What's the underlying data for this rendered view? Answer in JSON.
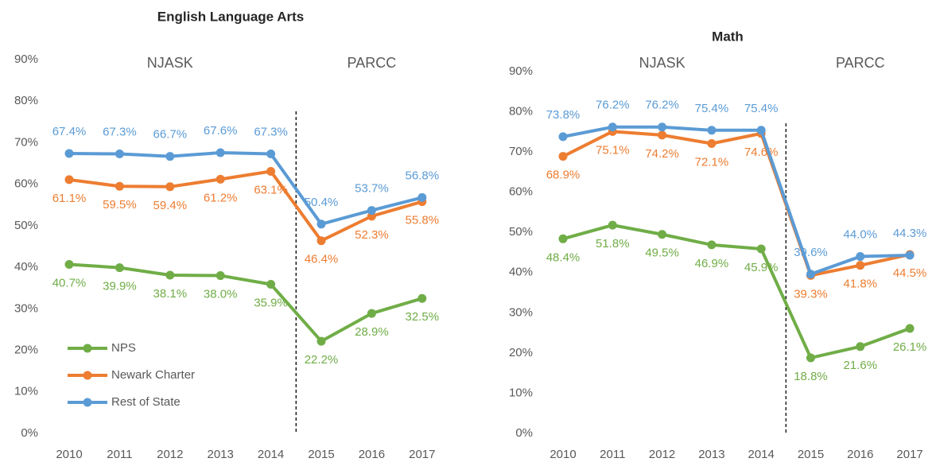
{
  "chart_data": [
    {
      "type": "line",
      "title": "English Language Arts",
      "annotations": [
        "NJASK",
        "PARCC"
      ],
      "categories": [
        "2010",
        "2011",
        "2012",
        "2013",
        "2014",
        "2015",
        "2016",
        "2017"
      ],
      "ylim": [
        0,
        90
      ],
      "yticks": [
        {
          "value": 0,
          "label": "0%"
        },
        {
          "value": 10,
          "label": "10%"
        },
        {
          "value": 20,
          "label": "20%"
        },
        {
          "value": 30,
          "label": "30%"
        },
        {
          "value": 40,
          "label": "40%"
        },
        {
          "value": 50,
          "label": "50%"
        },
        {
          "value": 60,
          "label": "60%"
        },
        {
          "value": 70,
          "label": "70%"
        },
        {
          "value": 80,
          "label": "80%"
        },
        {
          "value": 90,
          "label": "90%"
        }
      ],
      "legend": "lower left",
      "series": [
        {
          "name": "NPS",
          "color": "#70ad47",
          "label_position": "below",
          "values": [
            40.7,
            39.9,
            38.1,
            38.0,
            35.9,
            22.2,
            28.9,
            32.5
          ],
          "value_labels": [
            "40.7%",
            "39.9%",
            "38.1%",
            "38.0%",
            "35.9%",
            "22.2%",
            "28.9%",
            "32.5%"
          ]
        },
        {
          "name": "Newark Charter",
          "color": "#ed7d31",
          "label_position": "below",
          "values": [
            61.1,
            59.5,
            59.4,
            61.2,
            63.1,
            46.4,
            52.3,
            55.8
          ],
          "value_labels": [
            "61.1%",
            "59.5%",
            "59.4%",
            "61.2%",
            "63.1%",
            "46.4%",
            "52.3%",
            "55.8%"
          ]
        },
        {
          "name": "Rest of State",
          "color": "#5b9bd5",
          "label_position": "above",
          "values": [
            67.4,
            67.3,
            66.7,
            67.6,
            67.3,
            50.4,
            53.7,
            56.8
          ],
          "value_labels": [
            "67.4%",
            "67.3%",
            "66.7%",
            "67.6%",
            "67.3%",
            "50.4%",
            "53.7%",
            "56.8%"
          ]
        }
      ]
    },
    {
      "type": "line",
      "title": "Math",
      "annotations": [
        "NJASK",
        "PARCC"
      ],
      "categories": [
        "2010",
        "2011",
        "2012",
        "2013",
        "2014",
        "2015",
        "2016",
        "2017"
      ],
      "ylim": [
        0,
        90
      ],
      "yticks": [
        {
          "value": 0,
          "label": "0%"
        },
        {
          "value": 10,
          "label": "10%"
        },
        {
          "value": 20,
          "label": "20%"
        },
        {
          "value": 30,
          "label": "30%"
        },
        {
          "value": 40,
          "label": "40%"
        },
        {
          "value": 50,
          "label": "50%"
        },
        {
          "value": 60,
          "label": "60%"
        },
        {
          "value": 70,
          "label": "70%"
        },
        {
          "value": 80,
          "label": "80%"
        },
        {
          "value": 90,
          "label": "90%"
        }
      ],
      "series": [
        {
          "color": "#70ad47",
          "label_position": "below",
          "values": [
            48.4,
            51.8,
            49.5,
            46.9,
            45.9,
            18.8,
            21.6,
            26.1
          ],
          "value_labels": [
            "48.4%",
            "51.8%",
            "49.5%",
            "46.9%",
            "45.9%",
            "18.8%",
            "21.6%",
            "26.1%"
          ]
        },
        {
          "color": "#ed7d31",
          "label_position": "below",
          "values": [
            68.9,
            75.1,
            74.2,
            72.1,
            74.6,
            39.3,
            41.8,
            44.5
          ],
          "value_labels": [
            "68.9%",
            "75.1%",
            "74.2%",
            "72.1%",
            "74.6%",
            "39.3%",
            "41.8%",
            "44.5%"
          ]
        },
        {
          "color": "#5b9bd5",
          "label_position": "above",
          "values": [
            73.8,
            76.2,
            76.2,
            75.4,
            75.4,
            39.6,
            44.0,
            44.3
          ],
          "value_labels": [
            "73.8%",
            "76.2%",
            "76.2%",
            "75.4%",
            "75.4%",
            "39.6%",
            "44.0%",
            "44.3%"
          ]
        }
      ]
    }
  ]
}
